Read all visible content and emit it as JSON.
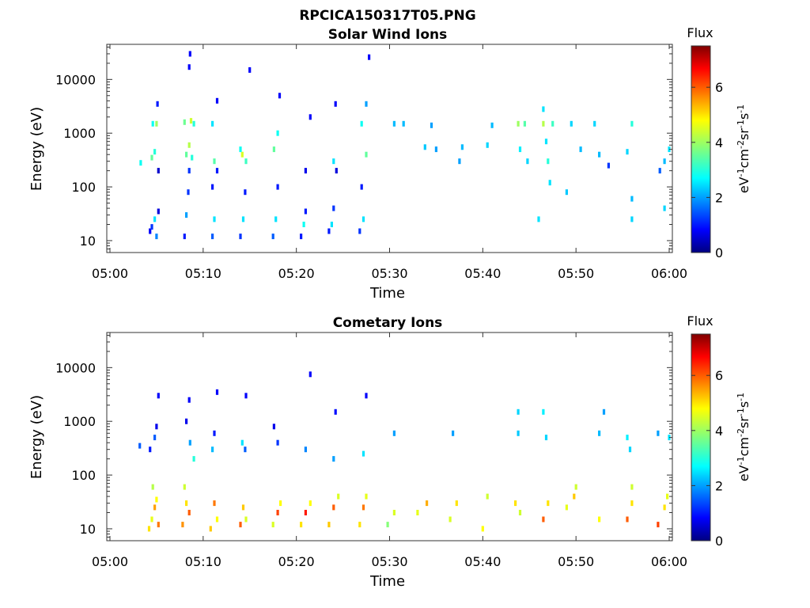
{
  "figure": {
    "title": "RPCICA150317T05.PNG"
  },
  "chart_data": [
    {
      "type": "heatmap",
      "title": "Solar Wind Ions",
      "xlabel": "Time",
      "ylabel": "Energy (eV)",
      "x_range": [
        "05:00",
        "06:00"
      ],
      "x_ticks": [
        "05:00",
        "05:10",
        "05:20",
        "05:30",
        "05:40",
        "05:50",
        "06:00"
      ],
      "y_scale": "log",
      "y_range": [
        6,
        45000
      ],
      "y_ticks": [
        "10",
        "100",
        "1000",
        "10000"
      ],
      "colorbar": {
        "label": "Flux",
        "unit_label": "eV-1cm-2sr-1s-1",
        "range": [
          0,
          7.5
        ],
        "ticks": [
          "0",
          "2",
          "4",
          "6"
        ],
        "colormap": "jet"
      },
      "points": [
        {
          "t": 4.3,
          "e": 15,
          "f": 0.8
        },
        {
          "t": 4.5,
          "e": 18,
          "f": 1.2
        },
        {
          "t": 4.8,
          "e": 25,
          "f": 2.5
        },
        {
          "t": 5.0,
          "e": 12,
          "f": 1.8
        },
        {
          "t": 5.2,
          "e": 35,
          "f": 0.6
        },
        {
          "t": 3.3,
          "e": 280,
          "f": 2.8
        },
        {
          "t": 4.5,
          "e": 350,
          "f": 3.5
        },
        {
          "t": 4.8,
          "e": 450,
          "f": 3.0
        },
        {
          "t": 5.2,
          "e": 200,
          "f": 0.5
        },
        {
          "t": 4.6,
          "e": 1500,
          "f": 2.8
        },
        {
          "t": 5.0,
          "e": 1500,
          "f": 4.0
        },
        {
          "t": 5.1,
          "e": 3500,
          "f": 1.0
        },
        {
          "t": 8.0,
          "e": 12,
          "f": 1.0
        },
        {
          "t": 8.2,
          "e": 30,
          "f": 2.0
        },
        {
          "t": 8.4,
          "e": 80,
          "f": 1.2
        },
        {
          "t": 8.5,
          "e": 600,
          "f": 4.2
        },
        {
          "t": 8.2,
          "e": 400,
          "f": 3.5
        },
        {
          "t": 8.8,
          "e": 350,
          "f": 3.0
        },
        {
          "t": 8.5,
          "e": 200,
          "f": 1.2
        },
        {
          "t": 8.0,
          "e": 1600,
          "f": 3.6
        },
        {
          "t": 8.7,
          "e": 1700,
          "f": 4.4
        },
        {
          "t": 9.0,
          "e": 1500,
          "f": 3.0
        },
        {
          "t": 8.6,
          "e": 30000,
          "f": 0.8
        },
        {
          "t": 8.5,
          "e": 17000,
          "f": 0.8
        },
        {
          "t": 11.0,
          "e": 12,
          "f": 1.5
        },
        {
          "t": 11.2,
          "e": 25,
          "f": 2.5
        },
        {
          "t": 11.0,
          "e": 100,
          "f": 1.0
        },
        {
          "t": 11.2,
          "e": 300,
          "f": 3.4
        },
        {
          "t": 11.5,
          "e": 200,
          "f": 1.0
        },
        {
          "t": 11.0,
          "e": 1500,
          "f": 2.5
        },
        {
          "t": 11.5,
          "e": 4000,
          "f": 0.8
        },
        {
          "t": 14.0,
          "e": 12,
          "f": 1.2
        },
        {
          "t": 14.3,
          "e": 25,
          "f": 2.5
        },
        {
          "t": 14.5,
          "e": 80,
          "f": 1.0
        },
        {
          "t": 14.2,
          "e": 400,
          "f": 4.5
        },
        {
          "t": 14.6,
          "e": 300,
          "f": 3.2
        },
        {
          "t": 14.0,
          "e": 500,
          "f": 2.8
        },
        {
          "t": 15.0,
          "e": 15000,
          "f": 0.8
        },
        {
          "t": 17.5,
          "e": 12,
          "f": 1.5
        },
        {
          "t": 17.8,
          "e": 25,
          "f": 2.5
        },
        {
          "t": 18.0,
          "e": 100,
          "f": 1.0
        },
        {
          "t": 17.6,
          "e": 500,
          "f": 3.5
        },
        {
          "t": 18.0,
          "e": 1000,
          "f": 2.8
        },
        {
          "t": 18.2,
          "e": 5000,
          "f": 0.8
        },
        {
          "t": 20.5,
          "e": 12,
          "f": 1.0
        },
        {
          "t": 20.8,
          "e": 20,
          "f": 2.8
        },
        {
          "t": 21.0,
          "e": 35,
          "f": 1.0
        },
        {
          "t": 21.0,
          "e": 200,
          "f": 0.7
        },
        {
          "t": 21.5,
          "e": 2000,
          "f": 0.8
        },
        {
          "t": 23.5,
          "e": 15,
          "f": 1.0
        },
        {
          "t": 23.8,
          "e": 20,
          "f": 2.5
        },
        {
          "t": 24.0,
          "e": 40,
          "f": 1.2
        },
        {
          "t": 24.0,
          "e": 300,
          "f": 2.5
        },
        {
          "t": 24.3,
          "e": 200,
          "f": 0.6
        },
        {
          "t": 24.2,
          "e": 3500,
          "f": 0.8
        },
        {
          "t": 26.8,
          "e": 15,
          "f": 1.2
        },
        {
          "t": 27.2,
          "e": 25,
          "f": 2.5
        },
        {
          "t": 27.0,
          "e": 100,
          "f": 1.0
        },
        {
          "t": 27.5,
          "e": 400,
          "f": 3.5
        },
        {
          "t": 27.0,
          "e": 1500,
          "f": 2.8
        },
        {
          "t": 27.5,
          "e": 3500,
          "f": 2.0
        },
        {
          "t": 27.8,
          "e": 26000,
          "f": 0.8
        },
        {
          "t": 30.5,
          "e": 1500,
          "f": 2.2
        },
        {
          "t": 31.5,
          "e": 1500,
          "f": 2.2
        },
        {
          "t": 34.5,
          "e": 1400,
          "f": 2.0
        },
        {
          "t": 33.8,
          "e": 550,
          "f": 2.3
        },
        {
          "t": 35.0,
          "e": 500,
          "f": 2.0
        },
        {
          "t": 37.5,
          "e": 300,
          "f": 2.0
        },
        {
          "t": 37.8,
          "e": 550,
          "f": 2.2
        },
        {
          "t": 40.5,
          "e": 600,
          "f": 2.4
        },
        {
          "t": 41.0,
          "e": 1400,
          "f": 2.2
        },
        {
          "t": 43.8,
          "e": 1500,
          "f": 4.0
        },
        {
          "t": 44.5,
          "e": 1500,
          "f": 3.4
        },
        {
          "t": 44.0,
          "e": 500,
          "f": 2.6
        },
        {
          "t": 44.8,
          "e": 300,
          "f": 2.4
        },
        {
          "t": 46.5,
          "e": 1500,
          "f": 4.2
        },
        {
          "t": 47.0,
          "e": 300,
          "f": 3.0
        },
        {
          "t": 46.8,
          "e": 700,
          "f": 2.5
        },
        {
          "t": 47.5,
          "e": 1500,
          "f": 3.2
        },
        {
          "t": 47.2,
          "e": 120,
          "f": 2.5
        },
        {
          "t": 49.0,
          "e": 80,
          "f": 2.3
        },
        {
          "t": 49.5,
          "e": 1500,
          "f": 2.4
        },
        {
          "t": 50.5,
          "e": 500,
          "f": 2.2
        },
        {
          "t": 52.0,
          "e": 1500,
          "f": 2.4
        },
        {
          "t": 52.5,
          "e": 400,
          "f": 2.2
        },
        {
          "t": 53.5,
          "e": 250,
          "f": 1.2
        },
        {
          "t": 55.5,
          "e": 450,
          "f": 2.4
        },
        {
          "t": 56.0,
          "e": 1500,
          "f": 3.0
        },
        {
          "t": 56.0,
          "e": 60,
          "f": 2.2
        },
        {
          "t": 46.0,
          "e": 25,
          "f": 2.5
        },
        {
          "t": 56.0,
          "e": 25,
          "f": 2.4
        },
        {
          "t": 59.5,
          "e": 300,
          "f": 2.2
        },
        {
          "t": 60.0,
          "e": 500,
          "f": 2.5
        },
        {
          "t": 59.0,
          "e": 200,
          "f": 1.5
        },
        {
          "t": 59.5,
          "e": 40,
          "f": 2.4
        },
        {
          "t": 46.5,
          "e": 2800,
          "f": 2.5
        }
      ]
    },
    {
      "type": "heatmap",
      "title": "Cometary Ions",
      "xlabel": "Time",
      "ylabel": "Energy (eV)",
      "x_range": [
        "05:00",
        "06:00"
      ],
      "x_ticks": [
        "05:00",
        "05:10",
        "05:20",
        "05:30",
        "05:40",
        "05:50",
        "06:00"
      ],
      "y_scale": "log",
      "y_range": [
        6,
        45000
      ],
      "y_ticks": [
        "10",
        "100",
        "1000",
        "10000"
      ],
      "colorbar": {
        "label": "Flux",
        "unit_label": "eV-1cm-2sr-1s-1",
        "range": [
          0,
          7.5
        ],
        "ticks": [
          "0",
          "2",
          "4",
          "6"
        ],
        "colormap": "jet"
      },
      "points": [
        {
          "t": 4.2,
          "e": 10,
          "f": 5.0
        },
        {
          "t": 4.5,
          "e": 15,
          "f": 4.6
        },
        {
          "t": 4.8,
          "e": 25,
          "f": 5.5
        },
        {
          "t": 5.0,
          "e": 35,
          "f": 4.8
        },
        {
          "t": 5.2,
          "e": 12,
          "f": 5.8
        },
        {
          "t": 4.6,
          "e": 60,
          "f": 4.2
        },
        {
          "t": 4.3,
          "e": 300,
          "f": 1.0
        },
        {
          "t": 4.8,
          "e": 500,
          "f": 1.5
        },
        {
          "t": 5.0,
          "e": 800,
          "f": 0.7
        },
        {
          "t": 5.2,
          "e": 3000,
          "f": 0.8
        },
        {
          "t": 3.2,
          "e": 350,
          "f": 1.5
        },
        {
          "t": 7.8,
          "e": 12,
          "f": 5.6
        },
        {
          "t": 8.2,
          "e": 30,
          "f": 5.0
        },
        {
          "t": 8.5,
          "e": 20,
          "f": 6.0
        },
        {
          "t": 8.0,
          "e": 60,
          "f": 4.4
        },
        {
          "t": 8.6,
          "e": 400,
          "f": 2.0
        },
        {
          "t": 8.2,
          "e": 1000,
          "f": 0.7
        },
        {
          "t": 8.5,
          "e": 2500,
          "f": 0.8
        },
        {
          "t": 9.0,
          "e": 200,
          "f": 3.0
        },
        {
          "t": 10.8,
          "e": 10,
          "f": 5.2
        },
        {
          "t": 11.2,
          "e": 30,
          "f": 5.8
        },
        {
          "t": 11.5,
          "e": 15,
          "f": 4.8
        },
        {
          "t": 11.0,
          "e": 300,
          "f": 2.2
        },
        {
          "t": 11.2,
          "e": 600,
          "f": 1.0
        },
        {
          "t": 11.5,
          "e": 3500,
          "f": 0.8
        },
        {
          "t": 14.0,
          "e": 12,
          "f": 6.0
        },
        {
          "t": 14.3,
          "e": 25,
          "f": 5.2
        },
        {
          "t": 14.6,
          "e": 15,
          "f": 4.5
        },
        {
          "t": 14.2,
          "e": 400,
          "f": 2.5
        },
        {
          "t": 14.5,
          "e": 300,
          "f": 1.5
        },
        {
          "t": 14.6,
          "e": 3000,
          "f": 0.8
        },
        {
          "t": 17.5,
          "e": 12,
          "f": 4.5
        },
        {
          "t": 18.0,
          "e": 20,
          "f": 6.2
        },
        {
          "t": 18.3,
          "e": 30,
          "f": 4.8
        },
        {
          "t": 18.0,
          "e": 400,
          "f": 1.2
        },
        {
          "t": 17.6,
          "e": 800,
          "f": 0.7
        },
        {
          "t": 20.5,
          "e": 12,
          "f": 5.0
        },
        {
          "t": 21.0,
          "e": 20,
          "f": 6.5
        },
        {
          "t": 21.5,
          "e": 30,
          "f": 4.8
        },
        {
          "t": 21.0,
          "e": 300,
          "f": 1.8
        },
        {
          "t": 21.5,
          "e": 7500,
          "f": 0.8
        },
        {
          "t": 23.5,
          "e": 12,
          "f": 5.2
        },
        {
          "t": 24.0,
          "e": 25,
          "f": 6.0
        },
        {
          "t": 24.5,
          "e": 40,
          "f": 4.5
        },
        {
          "t": 24.0,
          "e": 200,
          "f": 2.0
        },
        {
          "t": 24.2,
          "e": 1500,
          "f": 0.9
        },
        {
          "t": 26.8,
          "e": 12,
          "f": 5.0
        },
        {
          "t": 27.2,
          "e": 25,
          "f": 5.8
        },
        {
          "t": 27.5,
          "e": 40,
          "f": 4.6
        },
        {
          "t": 27.2,
          "e": 250,
          "f": 2.5
        },
        {
          "t": 27.5,
          "e": 3000,
          "f": 0.8
        },
        {
          "t": 29.8,
          "e": 12,
          "f": 3.8
        },
        {
          "t": 30.5,
          "e": 20,
          "f": 4.5
        },
        {
          "t": 30.5,
          "e": 600,
          "f": 2.0
        },
        {
          "t": 33.0,
          "e": 20,
          "f": 4.6
        },
        {
          "t": 34.0,
          "e": 30,
          "f": 5.4
        },
        {
          "t": 36.5,
          "e": 15,
          "f": 4.5
        },
        {
          "t": 37.2,
          "e": 30,
          "f": 5.0
        },
        {
          "t": 36.8,
          "e": 600,
          "f": 2.0
        },
        {
          "t": 40.0,
          "e": 10,
          "f": 4.8
        },
        {
          "t": 40.5,
          "e": 40,
          "f": 4.4
        },
        {
          "t": 43.5,
          "e": 30,
          "f": 5.0
        },
        {
          "t": 44.0,
          "e": 20,
          "f": 4.4
        },
        {
          "t": 43.8,
          "e": 1500,
          "f": 2.4
        },
        {
          "t": 43.8,
          "e": 600,
          "f": 2.3
        },
        {
          "t": 46.5,
          "e": 15,
          "f": 6.0
        },
        {
          "t": 47.0,
          "e": 30,
          "f": 5.0
        },
        {
          "t": 46.8,
          "e": 500,
          "f": 2.4
        },
        {
          "t": 46.5,
          "e": 1500,
          "f": 2.6
        },
        {
          "t": 49.0,
          "e": 25,
          "f": 4.6
        },
        {
          "t": 49.8,
          "e": 40,
          "f": 5.2
        },
        {
          "t": 50.0,
          "e": 60,
          "f": 4.4
        },
        {
          "t": 52.5,
          "e": 15,
          "f": 4.8
        },
        {
          "t": 53.0,
          "e": 1500,
          "f": 2.0
        },
        {
          "t": 52.5,
          "e": 600,
          "f": 2.2
        },
        {
          "t": 55.5,
          "e": 15,
          "f": 6.0
        },
        {
          "t": 56.0,
          "e": 30,
          "f": 5.0
        },
        {
          "t": 56.0,
          "e": 60,
          "f": 4.4
        },
        {
          "t": 55.8,
          "e": 300,
          "f": 2.4
        },
        {
          "t": 55.5,
          "e": 500,
          "f": 2.6
        },
        {
          "t": 58.8,
          "e": 12,
          "f": 6.2
        },
        {
          "t": 59.5,
          "e": 25,
          "f": 5.0
        },
        {
          "t": 59.8,
          "e": 40,
          "f": 4.6
        },
        {
          "t": 58.8,
          "e": 600,
          "f": 2.0
        },
        {
          "t": 60.0,
          "e": 500,
          "f": 2.5
        }
      ]
    }
  ]
}
